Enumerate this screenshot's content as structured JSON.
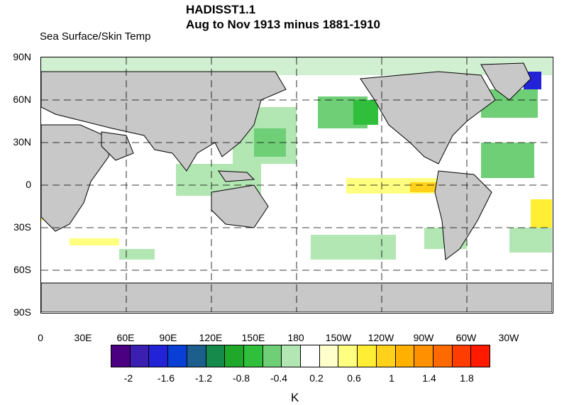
{
  "title_line1": "HADISST1.1",
  "title_line2": "Aug to Nov 1913 minus 1881-1910",
  "subtitle": "Sea Surface/Skin Temp",
  "lat_labels": [
    "90N",
    "60N",
    "30N",
    "0",
    "30S",
    "60S",
    "90S"
  ],
  "lon_labels": [
    "0",
    "30E",
    "60E",
    "90E",
    "120E",
    "150E",
    "180",
    "150W",
    "120W",
    "90W",
    "60W",
    "30W"
  ],
  "colorbar": {
    "colors": [
      "#4b0082",
      "#3a1fb0",
      "#2222d6",
      "#0a3fd6",
      "#1d5f8c",
      "#158a4a",
      "#1fa82a",
      "#2fbf3a",
      "#6fcf76",
      "#b2e6b2",
      "#ffffff",
      "#ffffcc",
      "#ffff80",
      "#ffee33",
      "#ffd11a",
      "#ffb000",
      "#ff9000",
      "#ff6a00",
      "#ff3d00",
      "#ff1a00"
    ],
    "tick_labels": [
      "-2",
      "-1.6",
      "-1.2",
      "-0.8",
      "-0.4",
      "0.2",
      "0.6",
      "1",
      "1.4",
      "1.8"
    ],
    "units": "K"
  }
}
